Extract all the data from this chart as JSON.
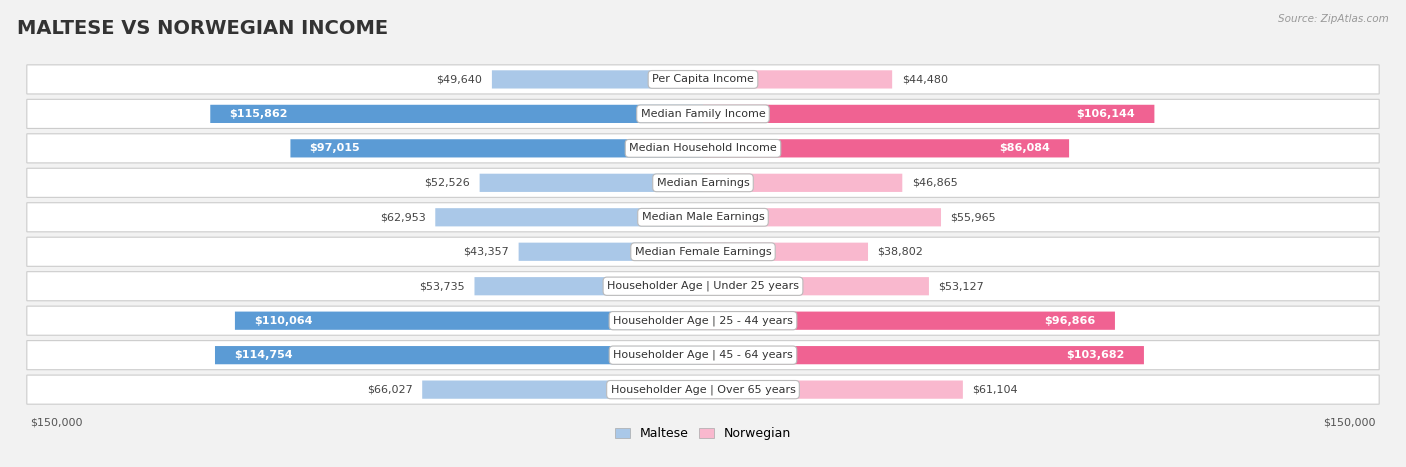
{
  "title": "MALTESE VS NORWEGIAN INCOME",
  "source": "Source: ZipAtlas.com",
  "categories": [
    "Per Capita Income",
    "Median Family Income",
    "Median Household Income",
    "Median Earnings",
    "Median Male Earnings",
    "Median Female Earnings",
    "Householder Age | Under 25 years",
    "Householder Age | 25 - 44 years",
    "Householder Age | 45 - 64 years",
    "Householder Age | Over 65 years"
  ],
  "maltese_values": [
    49640,
    115862,
    97015,
    52526,
    62953,
    43357,
    53735,
    110064,
    114754,
    66027
  ],
  "norwegian_values": [
    44480,
    106144,
    86084,
    46865,
    55965,
    38802,
    53127,
    96866,
    103682,
    61104
  ],
  "maltese_labels": [
    "$49,640",
    "$115,862",
    "$97,015",
    "$52,526",
    "$62,953",
    "$43,357",
    "$53,735",
    "$110,064",
    "$114,754",
    "$66,027"
  ],
  "norwegian_labels": [
    "$44,480",
    "$106,144",
    "$86,084",
    "$46,865",
    "$55,965",
    "$38,802",
    "$53,127",
    "$96,866",
    "$103,682",
    "$61,104"
  ],
  "maltese_light_color": "#aac8e8",
  "maltese_dark_color": "#5b9bd5",
  "norwegian_light_color": "#f9b8ce",
  "norwegian_dark_color": "#f06292",
  "inside_threshold": 0.5,
  "max_value": 150000,
  "background_color": "#f2f2f2",
  "row_bg_color": "#ffffff",
  "row_border_color": "#cccccc",
  "title_fontsize": 14,
  "label_fontsize": 8,
  "value_fontsize": 8,
  "axis_label": "$150,000"
}
